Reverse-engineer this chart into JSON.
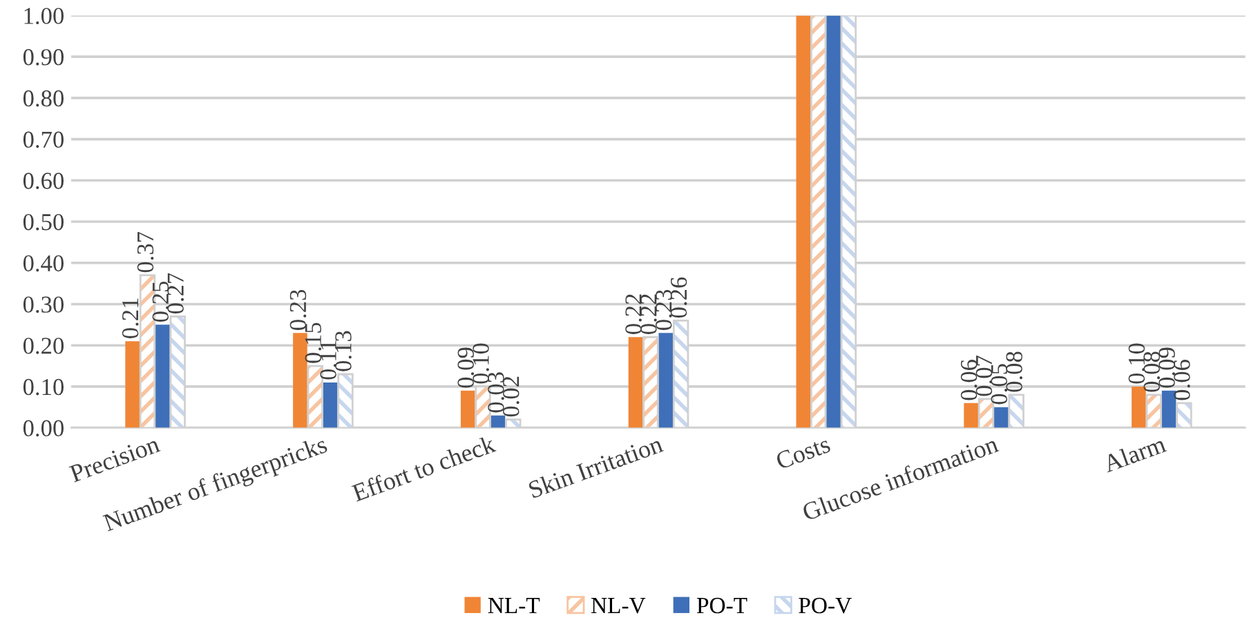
{
  "chart_data": {
    "type": "bar",
    "categories": [
      "Precision",
      "Number of fingerpricks",
      "Effort to check",
      "Skin Irritation",
      "Costs",
      "Glucose information",
      "Alarm"
    ],
    "series": [
      {
        "name": "NL-T",
        "color": "#f08535",
        "values": [
          0.21,
          0.23,
          0.09,
          0.22,
          1.0,
          0.06,
          0.1
        ],
        "value_labels": [
          "0.21",
          "0.23",
          "0.09",
          "0.22",
          null,
          "0.06",
          "0.10"
        ]
      },
      {
        "name": "NL-V",
        "color": "#f8c4a0",
        "values": [
          0.37,
          0.15,
          0.1,
          0.22,
          1.0,
          0.07,
          0.08
        ],
        "value_labels": [
          "0.37",
          "0.15",
          "0.10",
          "0.22",
          null,
          "0.07",
          "0.08"
        ]
      },
      {
        "name": "PO-T",
        "color": "#3f6fb8",
        "values": [
          0.25,
          0.11,
          0.03,
          0.23,
          1.0,
          0.05,
          0.09
        ],
        "value_labels": [
          "0.25",
          "0.11",
          "0.03",
          "0.23",
          null,
          "0.05",
          "0.09"
        ]
      },
      {
        "name": "PO-V",
        "color": "#c6d6ee",
        "values": [
          0.27,
          0.13,
          0.02,
          0.26,
          1.0,
          0.08,
          0.06
        ],
        "value_labels": [
          "0.27",
          "0.13",
          "0.02",
          "0.26",
          null,
          "0.08",
          "0.06"
        ]
      }
    ],
    "ylim": [
      0,
      1.0
    ],
    "yticks": [
      {
        "value": 0,
        "label": "0.00"
      },
      {
        "value": 0.1,
        "label": "0.10"
      },
      {
        "value": 0.2,
        "label": "0.20"
      },
      {
        "value": 0.3,
        "label": "0.30"
      },
      {
        "value": 0.4,
        "label": "0.40"
      },
      {
        "value": 0.5,
        "label": "0.50"
      },
      {
        "value": 0.6,
        "label": "0.60"
      },
      {
        "value": 0.7,
        "label": "0.70"
      },
      {
        "value": 0.8,
        "label": "0.80"
      },
      {
        "value": 0.9,
        "label": "0.90"
      },
      {
        "value": 1.0,
        "label": "1.00"
      }
    ],
    "grid": "y",
    "legend": "bottom"
  }
}
